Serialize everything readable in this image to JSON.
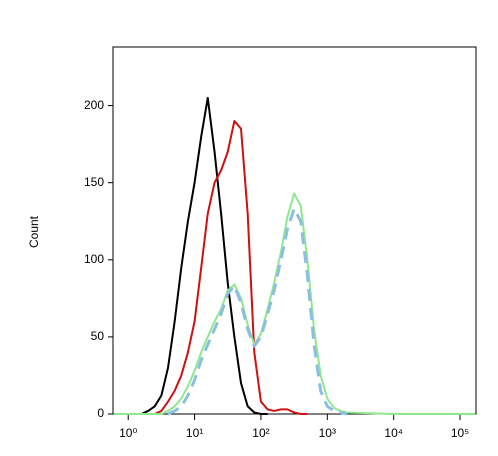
{
  "chart_data": {
    "type": "line",
    "y_label": "Count",
    "log_x": true,
    "x": [
      0.6,
      1,
      1.26,
      1.58,
      2,
      2.51,
      3.16,
      3.98,
      5.01,
      6.31,
      7.94,
      10,
      12.6,
      15.8,
      20,
      25.1,
      31.6,
      39.8,
      50.1,
      63.1,
      79.4,
      100,
      126,
      158,
      200,
      251,
      316,
      398,
      501,
      631,
      794,
      1000,
      1259,
      1585,
      2000,
      10000,
      170000
    ],
    "series": [
      {
        "color": "#000000",
        "values": [
          null,
          null,
          null,
          0,
          2,
          5,
          12,
          30,
          60,
          95,
          125,
          150,
          180,
          205,
          170,
          130,
          85,
          50,
          20,
          5,
          1,
          0,
          0,
          null,
          null,
          null,
          null,
          null,
          null,
          null,
          null,
          null,
          null,
          null,
          null,
          null,
          null
        ]
      },
      {
        "color": "#cc1111",
        "values": [
          null,
          null,
          null,
          null,
          null,
          0,
          2,
          8,
          15,
          25,
          40,
          60,
          95,
          130,
          150,
          158,
          170,
          190,
          185,
          130,
          40,
          8,
          3,
          2,
          3,
          3,
          1,
          0,
          0,
          null,
          null,
          null,
          null,
          null,
          null,
          null,
          null
        ]
      },
      {
        "color": "#8ee88e",
        "values": [
          0,
          0,
          0,
          0,
          0,
          0,
          0,
          2,
          5,
          10,
          18,
          28,
          40,
          50,
          60,
          68,
          80,
          84,
          75,
          58,
          45,
          52,
          68,
          85,
          105,
          128,
          143,
          135,
          100,
          55,
          25,
          10,
          4,
          2,
          1,
          0,
          0
        ]
      },
      {
        "color": "#8cbfdf",
        "dashed": true,
        "values": [
          null,
          null,
          null,
          null,
          null,
          null,
          null,
          0,
          2,
          5,
          12,
          22,
          35,
          45,
          55,
          65,
          78,
          83,
          72,
          55,
          44,
          50,
          65,
          80,
          100,
          120,
          133,
          125,
          90,
          45,
          15,
          5,
          2,
          1,
          0,
          null,
          null
        ]
      }
    ],
    "xlim": [
      0.59,
      174000
    ],
    "xticks": [
      {
        "value": 1,
        "label": "10⁰"
      },
      {
        "value": 10,
        "label": "10¹"
      },
      {
        "value": 100,
        "label": "10²"
      },
      {
        "value": 1000,
        "label": "10³"
      },
      {
        "value": 10000,
        "label": "10⁴"
      },
      {
        "value": 100000,
        "label": "10⁵"
      }
    ],
    "ylim": [
      0,
      238
    ],
    "yticks": [
      0,
      50,
      100,
      150,
      200
    ]
  }
}
